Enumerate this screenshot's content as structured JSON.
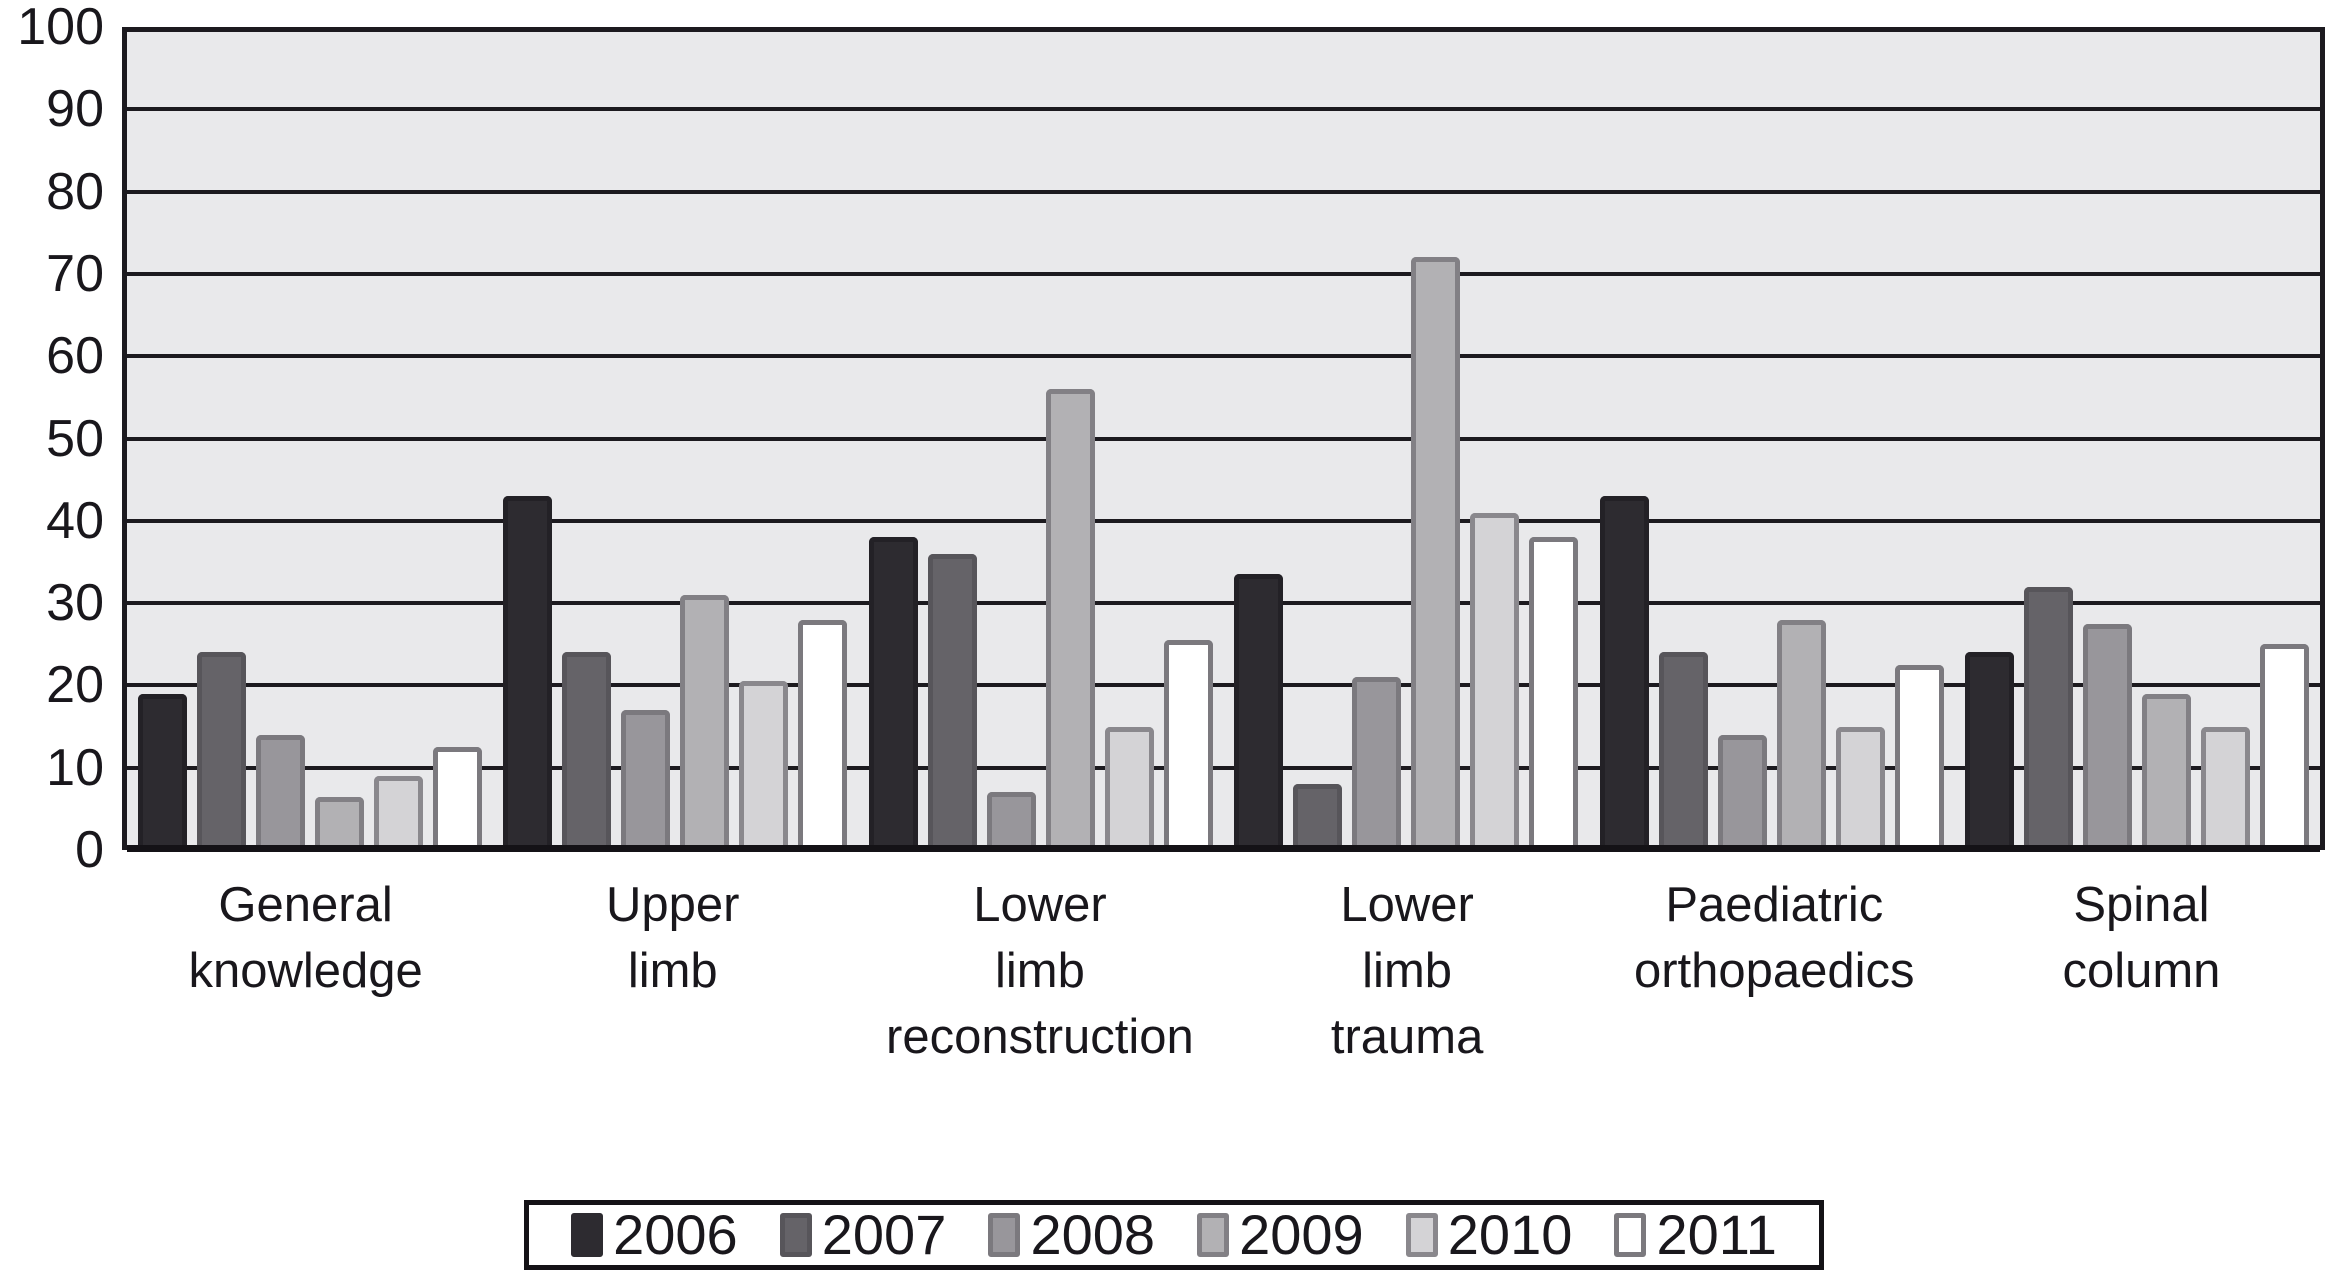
{
  "chart_data": {
    "type": "bar",
    "title": "",
    "xlabel": "",
    "ylabel": "",
    "ylim": [
      0,
      100
    ],
    "ytick_step": 10,
    "yticks": [
      0,
      10,
      20,
      30,
      40,
      50,
      60,
      70,
      80,
      90,
      100
    ],
    "grid": "horizontal",
    "legend_position": "bottom",
    "plot_background": "#e9e9eb",
    "gridline_color": "#1c1a1f",
    "axis_color": "#141216",
    "categories": [
      {
        "name": "General knowledge",
        "label_lines": [
          "General",
          "knowledge"
        ]
      },
      {
        "name": "Upper limb",
        "label_lines": [
          "Upper",
          "limb"
        ]
      },
      {
        "name": "Lower limb reconstruction",
        "label_lines": [
          "Lower",
          "limb",
          "reconstruction"
        ]
      },
      {
        "name": "Lower limb trauma",
        "label_lines": [
          "Lower",
          "limb",
          "trauma"
        ]
      },
      {
        "name": "Paediatric orthopaedics",
        "label_lines": [
          "Paediatric",
          "orthopaedics"
        ]
      },
      {
        "name": "Spinal column",
        "label_lines": [
          "Spinal",
          "column"
        ]
      }
    ],
    "series": [
      {
        "name": "2006",
        "fill": "#2d2b30",
        "border": "#232126",
        "values": [
          19,
          43,
          38,
          33.5,
          43,
          24
        ]
      },
      {
        "name": "2007",
        "fill": "#656368",
        "border": "#57555a",
        "values": [
          24,
          24,
          36,
          8,
          24,
          32
        ]
      },
      {
        "name": "2008",
        "fill": "#98969b",
        "border": "#7b797e",
        "values": [
          14,
          17,
          7,
          21,
          14,
          27.5
        ]
      },
      {
        "name": "2009",
        "fill": "#b2b1b4",
        "border": "#828085",
        "values": [
          6.5,
          31,
          56,
          72,
          28,
          19
        ]
      },
      {
        "name": "2010",
        "fill": "#d4d3d6",
        "border": "#8a888d",
        "values": [
          9,
          20.5,
          15,
          41,
          15,
          15
        ]
      },
      {
        "name": "2011",
        "fill": "#ffffff",
        "border": "#7b797e",
        "values": [
          12.5,
          28,
          25.5,
          38,
          22.5,
          25
        ]
      }
    ]
  }
}
